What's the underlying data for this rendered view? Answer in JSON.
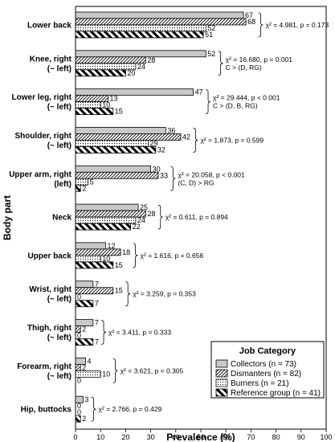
{
  "chart_data": {
    "type": "bar",
    "orientation": "horizontal",
    "xlabel": "Prevalence (%)",
    "ylabel": "Body part",
    "xlim": [
      0,
      100
    ],
    "xticks": [
      0,
      10,
      20,
      30,
      40,
      50,
      60,
      70,
      80,
      90,
      100
    ],
    "categories": [
      {
        "lines": [
          "Lower back"
        ]
      },
      {
        "lines": [
          "Knee, right",
          "(~ left)"
        ]
      },
      {
        "lines": [
          "Lower leg, right",
          "(~ left)"
        ]
      },
      {
        "lines": [
          "Shoulder, right",
          "(~ left)"
        ]
      },
      {
        "lines": [
          "Upper arm, right",
          "(left)"
        ]
      },
      {
        "lines": [
          "Neck"
        ]
      },
      {
        "lines": [
          "Upper back"
        ]
      },
      {
        "lines": [
          "Wrist, right",
          "(~ left)"
        ]
      },
      {
        "lines": [
          "Thigh, right",
          "(~ left)"
        ]
      },
      {
        "lines": [
          "Forearm, right",
          "(~ left)"
        ]
      },
      {
        "lines": [
          "Hip, buttocks"
        ]
      }
    ],
    "series": [
      {
        "name": "Collectors (n = 73)",
        "pattern": "solid-gray",
        "values": [
          67,
          52,
          47,
          36,
          30,
          25,
          12,
          7,
          7,
          4,
          3
        ]
      },
      {
        "name": "Dismanters (n = 82)",
        "pattern": "diagonal-hatch",
        "values": [
          68,
          28,
          13,
          42,
          33,
          28,
          18,
          15,
          2,
          2,
          0
        ]
      },
      {
        "name": "Burners (n = 21)",
        "pattern": "dotted",
        "values": [
          52,
          24,
          10,
          29,
          5,
          24,
          10,
          0,
          0,
          10,
          0
        ]
      },
      {
        "name": "Reference group (n = 41)",
        "pattern": "bold-diagonal-stripes",
        "values": [
          51,
          20,
          15,
          32,
          2,
          22,
          15,
          7,
          7,
          0,
          2
        ]
      }
    ],
    "annotations": [
      {
        "lines": [
          "χ² = 4.981, p = 0.173"
        ]
      },
      {
        "lines": [
          "χ² = 16.680, p = 0.001",
          "C > (D, RG)"
        ]
      },
      {
        "lines": [
          "χ² = 29.444, p < 0.001",
          "C > (D, B, RG)"
        ]
      },
      {
        "lines": [
          "χ² = 1.873, p = 0.599"
        ]
      },
      {
        "lines": [
          "χ² = 20.058, p < 0.001",
          "(C, D) > RG"
        ]
      },
      {
        "lines": [
          "χ² = 0.611, p = 0.894"
        ]
      },
      {
        "lines": [
          "χ² = 1.616, p = 0.656"
        ]
      },
      {
        "lines": [
          "χ² = 3.259, p = 0.353"
        ]
      },
      {
        "lines": [
          "χ² = 3.411, p = 0.333"
        ]
      },
      {
        "lines": [
          "χ² = 3.621, p = 0.305"
        ]
      },
      {
        "lines": [
          "χ² = 2.766, p = 0.429"
        ]
      }
    ],
    "legend": {
      "title": "Job Category",
      "position": "bottom-right"
    },
    "grid": false
  }
}
